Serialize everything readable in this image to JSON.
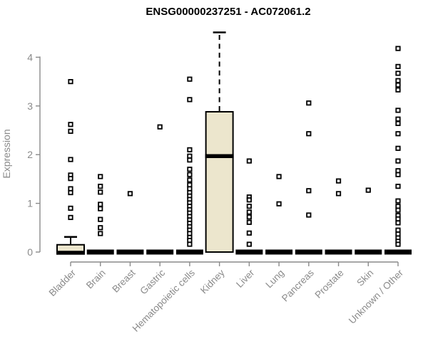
{
  "chart_data": {
    "type": "boxplot",
    "title": "ENSG00000237251 - AC072061.2",
    "ylabel": "Expression",
    "xlabel": "",
    "ylim": [
      0,
      4.6
    ],
    "yticks": [
      0,
      1,
      2,
      3,
      4
    ],
    "grid": false,
    "legend": "none",
    "colors": {
      "background": "#ffffff",
      "box_fill": "#ece6cd",
      "box_stroke": "#000000",
      "median": "#000000",
      "outlier_stroke": "#000000",
      "outlier_fill": "#ffffff",
      "axis": "#8a8a8a",
      "tick_label": "#8a8a8a",
      "title": "#000000"
    },
    "categories": [
      "Bladder",
      "Brain",
      "Breast",
      "Gastric",
      "Hematopoietic cells",
      "Kidney",
      "Liver",
      "Lung",
      "Pancreas",
      "Prostate",
      "Skin",
      "Unknown / Other"
    ],
    "boxes": [
      {
        "label": "Bladder",
        "median": 0,
        "q1": 0,
        "q3": 0.15,
        "whisker_low": 0,
        "whisker_high": 0.31,
        "whisker_dashed": false,
        "outliers": [
          3.5,
          2.62,
          2.48,
          1.9,
          1.58,
          1.51,
          1.3,
          1.22,
          0.9,
          0.71
        ]
      },
      {
        "label": "Brain",
        "median": 0,
        "q1": 0,
        "q3": 0,
        "whisker_low": 0,
        "whisker_high": 0,
        "whisker_dashed": false,
        "outliers": [
          1.55,
          1.35,
          1.23,
          0.98,
          0.89,
          0.67,
          0.5,
          0.38
        ]
      },
      {
        "label": "Breast",
        "median": 0,
        "q1": 0,
        "q3": 0,
        "whisker_low": 0,
        "whisker_high": 0,
        "whisker_dashed": false,
        "outliers": [
          1.2
        ]
      },
      {
        "label": "Gastric",
        "median": 0,
        "q1": 0,
        "q3": 0,
        "whisker_low": 0,
        "whisker_high": 0,
        "whisker_dashed": false,
        "outliers": [
          2.57
        ]
      },
      {
        "label": "Hematopoietic cells",
        "median": 0,
        "q1": 0,
        "q3": 0,
        "whisker_low": 0,
        "whisker_high": 0,
        "whisker_dashed": false,
        "outliers": [
          3.55,
          3.13,
          2.1,
          1.97,
          1.89,
          1.7,
          1.59,
          1.48,
          1.38,
          1.3,
          1.22,
          1.15,
          1.08,
          1.01,
          0.94,
          0.87,
          0.8,
          0.73,
          0.66,
          0.59,
          0.52,
          0.45,
          0.38,
          0.3,
          0.24,
          0.16
        ]
      },
      {
        "label": "Kidney",
        "median": 1.97,
        "q1": 0,
        "q3": 2.88,
        "whisker_low": 0,
        "whisker_high": 4.51,
        "whisker_dashed": true,
        "outliers": []
      },
      {
        "label": "Liver",
        "median": 0,
        "q1": 0,
        "q3": 0,
        "whisker_low": 0,
        "whisker_high": 0,
        "whisker_dashed": false,
        "outliers": [
          1.87,
          1.13,
          1.07,
          0.94,
          0.82,
          0.72,
          0.61,
          0.39,
          0.16
        ]
      },
      {
        "label": "Lung",
        "median": 0,
        "q1": 0,
        "q3": 0,
        "whisker_low": 0,
        "whisker_high": 0,
        "whisker_dashed": false,
        "outliers": [
          1.55,
          0.99
        ]
      },
      {
        "label": "Pancreas",
        "median": 0,
        "q1": 0,
        "q3": 0,
        "whisker_low": 0,
        "whisker_high": 0,
        "whisker_dashed": false,
        "outliers": [
          3.06,
          2.43,
          1.26,
          0.76
        ]
      },
      {
        "label": "Prostate",
        "median": 0,
        "q1": 0,
        "q3": 0,
        "whisker_low": 0,
        "whisker_high": 0,
        "whisker_dashed": false,
        "outliers": [
          1.46,
          1.2
        ]
      },
      {
        "label": "Skin",
        "median": 0,
        "q1": 0,
        "q3": 0,
        "whisker_low": 0,
        "whisker_high": 0,
        "whisker_dashed": false,
        "outliers": [
          1.27
        ]
      },
      {
        "label": "Unknown / Other",
        "median": 0,
        "q1": 0,
        "q3": 0,
        "whisker_low": 0,
        "whisker_high": 0,
        "whisker_dashed": false,
        "outliers": [
          4.18,
          3.81,
          3.67,
          3.52,
          3.43,
          3.33,
          2.91,
          2.73,
          2.64,
          2.43,
          2.13,
          1.87,
          1.67,
          1.59,
          1.35,
          1.05,
          0.94,
          0.86,
          0.75,
          0.68,
          0.6,
          0.45,
          0.37,
          0.29,
          0.22,
          0.16
        ]
      }
    ]
  }
}
